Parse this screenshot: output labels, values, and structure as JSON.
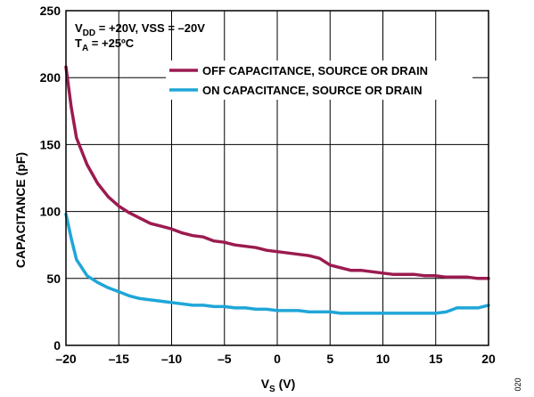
{
  "chart_data": {
    "type": "line",
    "xlabel_main": "V",
    "xlabel_sub": "S",
    "xlabel_unit": " (V)",
    "ylabel": "CAPACITANCE (pF)",
    "xlim": [
      -20,
      20
    ],
    "ylim": [
      0,
      250
    ],
    "x_ticks": [
      -20,
      -15,
      -10,
      -5,
      0,
      5,
      10,
      15,
      20
    ],
    "x_tick_labels": [
      "–20",
      "–15",
      "–10",
      "–5",
      "0",
      "5",
      "10",
      "15",
      "20"
    ],
    "y_ticks": [
      0,
      50,
      100,
      150,
      200,
      250
    ],
    "y_tick_labels": [
      "0",
      "50",
      "100",
      "150",
      "200",
      "250"
    ],
    "grid": true,
    "legend_position": "top-right",
    "annotations": {
      "line1_prefix": "V",
      "line1_sub": "DD",
      "line1_rest": " = +20V, VSS = –20V",
      "line2_prefix": "T",
      "line2_sub": "A",
      "line2_rest": " = +25ºC"
    },
    "figure_id": "020",
    "series": [
      {
        "name": "OFF CAPACITANCE, SOURCE OR DRAIN",
        "color": "#9b1b4f",
        "x": [
          -20,
          -19.5,
          -19,
          -18,
          -17,
          -16,
          -15,
          -14,
          -13,
          -12,
          -11,
          -10,
          -9,
          -8,
          -7,
          -6,
          -5,
          -4,
          -3,
          -2,
          -1,
          0,
          1,
          2,
          3,
          4,
          5,
          6,
          7,
          8,
          9,
          10,
          11,
          12,
          13,
          14,
          15,
          16,
          17,
          18,
          19,
          20
        ],
        "y": [
          208,
          178,
          155,
          135,
          121,
          111,
          104,
          99,
          95,
          91,
          89,
          87,
          84,
          82,
          81,
          78,
          77,
          75,
          74,
          73,
          71,
          70,
          69,
          68,
          67,
          65,
          60,
          58,
          56,
          56,
          55,
          54,
          53,
          53,
          53,
          52,
          52,
          51,
          51,
          51,
          50,
          50
        ]
      },
      {
        "name": "ON CAPACITANCE, SOURCE OR DRAIN",
        "color": "#1fa6d8",
        "x": [
          -20,
          -19.5,
          -19,
          -18,
          -17,
          -16,
          -15,
          -14,
          -13,
          -12,
          -11,
          -10,
          -9,
          -8,
          -7,
          -6,
          -5,
          -4,
          -3,
          -2,
          -1,
          0,
          1,
          2,
          3,
          4,
          5,
          6,
          7,
          8,
          9,
          10,
          11,
          12,
          13,
          14,
          15,
          16,
          17,
          18,
          19,
          20
        ],
        "y": [
          98,
          80,
          64,
          52,
          47,
          43,
          40,
          37,
          35,
          34,
          33,
          32,
          31,
          30,
          30,
          29,
          29,
          28,
          28,
          27,
          27,
          26,
          26,
          26,
          25,
          25,
          25,
          24,
          24,
          24,
          24,
          24,
          24,
          24,
          24,
          24,
          24,
          25,
          28,
          28,
          28,
          30
        ]
      }
    ]
  }
}
